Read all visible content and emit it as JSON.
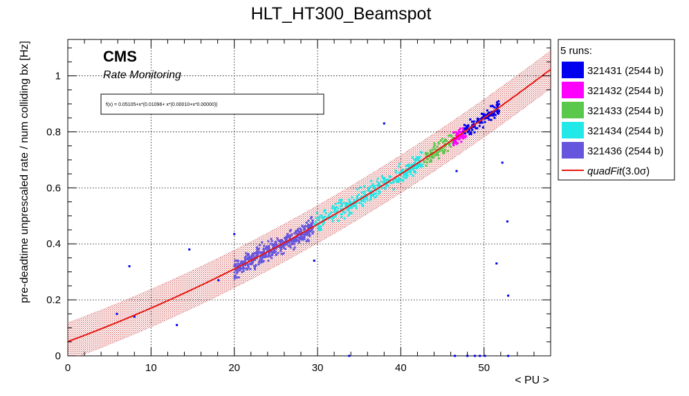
{
  "chart_data": {
    "type": "scatter",
    "title": "HLT_HT300_Beamspot",
    "xlabel": "< PU >",
    "ylabel": "pre-deadtime unprescaled rate / num colliding bx [Hz]",
    "xlim": [
      0,
      58
    ],
    "ylim": [
      0,
      1.13
    ],
    "x_ticks": [
      0,
      10,
      20,
      30,
      40,
      50
    ],
    "x_tick_labels": [
      "0",
      "10",
      "20",
      "30",
      "40",
      "50"
    ],
    "y_ticks": [
      0,
      0.2,
      0.4,
      0.6,
      0.8,
      1.0
    ],
    "y_tick_labels": [
      "0",
      "0.2",
      "0.4",
      "0.6",
      "0.8",
      "1"
    ],
    "grid": true,
    "annotations": {
      "experiment": "CMS",
      "subtitle": "Rate Monitoring",
      "formula": "f(x) = 0.05105+x*(0.01096+ x*(0.00010+x*0.00000))"
    },
    "legend": {
      "placement": "right",
      "header": "5 runs:",
      "fit_label_prefix": "quadFit",
      "fit_label_suffix": "(3.0σ)"
    },
    "fit": {
      "name": "quadFit(3.0σ)",
      "color": "#e8140f",
      "band_color": "#d23c3c",
      "coefficients": [
        0.05105,
        0.01096,
        0.0001,
        0.0
      ],
      "band_halfwidth": 0.067,
      "x_range": [
        0,
        58
      ]
    },
    "series": [
      {
        "name": "321431 (2544 b)",
        "color": "#0000ee",
        "x_range": [
          47.5,
          51.8
        ],
        "n": 110,
        "spread": 0.022,
        "outliers": [
          [
            5.9,
            0.15
          ],
          [
            7.4,
            0.32
          ],
          [
            8.0,
            0.14
          ],
          [
            13.1,
            0.11
          ],
          [
            14.6,
            0.38
          ],
          [
            18.1,
            0.27
          ],
          [
            20.0,
            0.435
          ],
          [
            29.6,
            0.34
          ],
          [
            38.0,
            0.83
          ],
          [
            46.7,
            0.66
          ],
          [
            51.5,
            0.33
          ],
          [
            52.2,
            0.69
          ],
          [
            52.8,
            0.48
          ],
          [
            52.9,
            0.215
          ],
          [
            33.8,
            0.0
          ],
          [
            46.5,
            0.0
          ],
          [
            48.0,
            0.0
          ],
          [
            48.9,
            0.0
          ],
          [
            49.5,
            0.0
          ],
          [
            50.1,
            0.0
          ],
          [
            52.9,
            0.0
          ]
        ]
      },
      {
        "name": "321432 (2544 b)",
        "color": "#ff00ff",
        "x_range": [
          46.3,
          47.9
        ],
        "n": 55,
        "spread": 0.02,
        "outliers": []
      },
      {
        "name": "321433 (2544 b)",
        "color": "#5ac84b",
        "x_range": [
          42.8,
          46.4
        ],
        "n": 85,
        "spread": 0.02,
        "outliers": []
      },
      {
        "name": "321434 (2544 b)",
        "color": "#22e8e8",
        "x_range": [
          29.6,
          42.6
        ],
        "n": 340,
        "spread": 0.024,
        "outliers": []
      },
      {
        "name": "321436 (2544 b)",
        "color": "#6655dd",
        "x_range": [
          20.0,
          29.5
        ],
        "n": 420,
        "spread": 0.024,
        "outliers": []
      }
    ]
  }
}
